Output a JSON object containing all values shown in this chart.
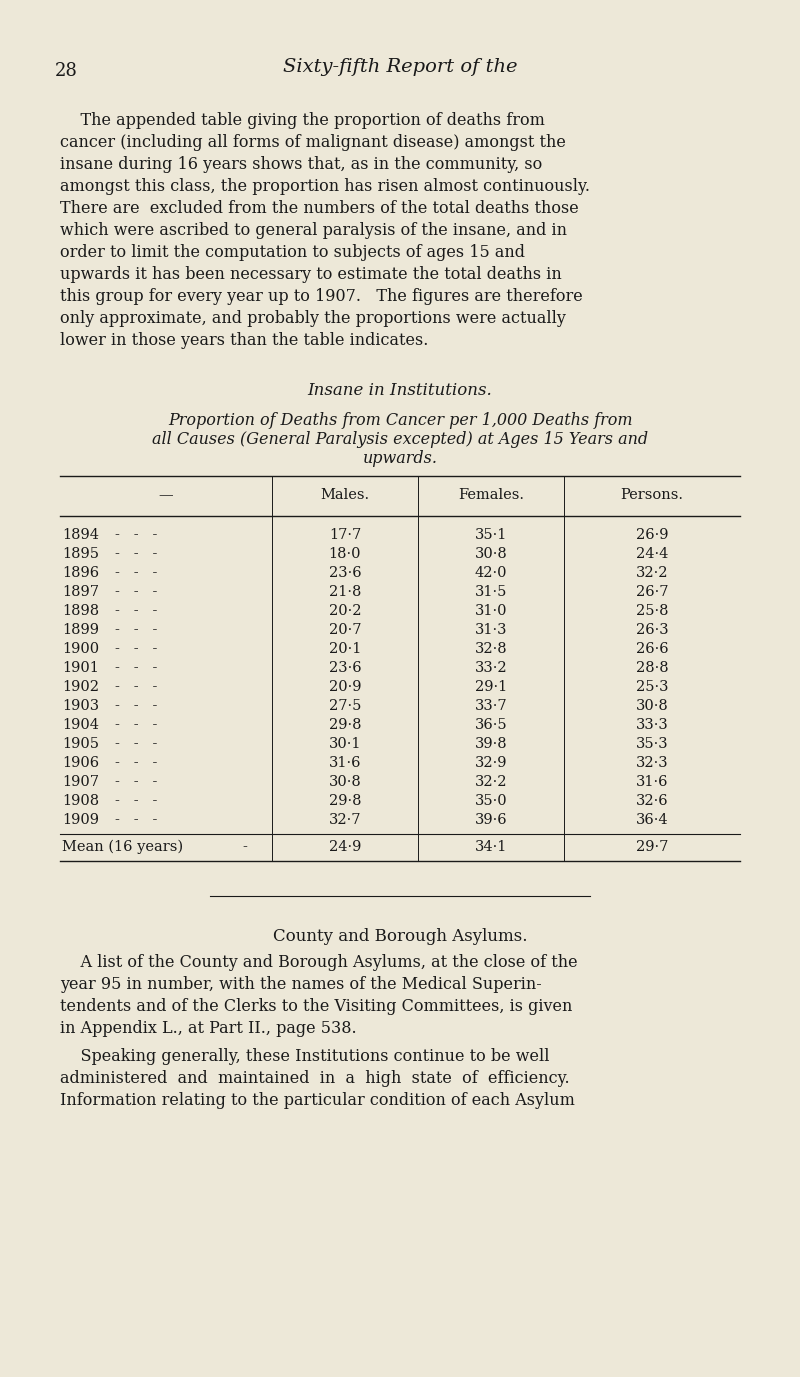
{
  "bg_color": "#ede8d8",
  "text_color": "#1a1a1a",
  "page_number": "28",
  "page_title": "Sixty-fifth Report of the",
  "intro_lines": [
    "    The appended table giving the proportion of deaths from",
    "cancer (including all forms of malignant disease) amongst the",
    "insane during 16 years shows that, as in the community, so",
    "amongst this class, the proportion has risen almost continuously.",
    "There are  excluded from the numbers of the total deaths those",
    "which were ascribed to general paralysis of the insane, and in",
    "order to limit the computation to subjects of ages 15 and",
    "upwards it has been necessary to estimate the total deaths in",
    "this group for every year up to 1907.   The figures are therefore",
    "only approximate, and probably the proportions were actually",
    "lower in those years than the table indicates."
  ],
  "section_title1": "Insane in Institutions.",
  "table_title_line1": "Proportion of Deaths from Cancer per 1,000 Deaths from",
  "table_title_line2": "all Causes (General Paralysis excepted) at Ages 15 Years and",
  "table_title_line3": "upwards.",
  "col_header_dash": "—",
  "col_header_males": "Males.",
  "col_header_females": "Females.",
  "col_header_persons": "Persons.",
  "years": [
    1894,
    1895,
    1896,
    1897,
    1898,
    1899,
    1900,
    1901,
    1902,
    1903,
    1904,
    1905,
    1906,
    1907,
    1908,
    1909
  ],
  "males": [
    "17·7",
    "18·0",
    "23·6",
    "21·8",
    "20·2",
    "20·7",
    "20·1",
    "23·6",
    "20·9",
    "27·5",
    "29·8",
    "30·1",
    "31·6",
    "30·8",
    "29·8",
    "32·7"
  ],
  "females": [
    "35·1",
    "30·8",
    "42·0",
    "31·5",
    "31·0",
    "31·3",
    "32·8",
    "33·2",
    "29·1",
    "33·7",
    "36·5",
    "39·8",
    "32·9",
    "32·2",
    "35·0",
    "39·6"
  ],
  "persons": [
    "26·9",
    "24·4",
    "32·2",
    "26·7",
    "25·8",
    "26·3",
    "26·6",
    "28·8",
    "25·3",
    "30·8",
    "33·3",
    "35·3",
    "32·3",
    "31·6",
    "32·6",
    "36·4"
  ],
  "mean_label": "Mean (16 years)",
  "mean_males": "24·9",
  "mean_females": "34·1",
  "mean_persons": "29·7",
  "section_title2": "County and Borough Asylums.",
  "para2_lines": [
    "    A list of the County and Borough Asylums, at the close of the",
    "year 95 in number, with the names of the Medical Superin-",
    "tendents and of the Clerks to the Visiting Committees, is given",
    "in Appendix L., at Part II., page 538."
  ],
  "para3_lines": [
    "    Speaking generally, these Institutions continue to be well",
    "administered  and  maintained  in  a  high  state  of  efficiency.",
    "Information relating to the particular condition of each Asylum"
  ]
}
